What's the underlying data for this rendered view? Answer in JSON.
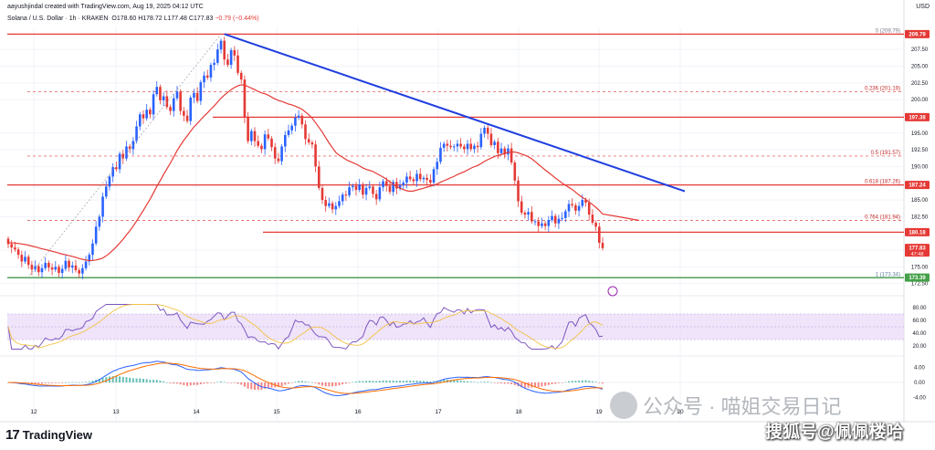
{
  "header": {
    "author_line": "aayushjindal created with TradingView.com, Aug 19, 2025 04:12 UTC",
    "symbol": "Solana / U.S. Dollar · 1h · KRAKEN",
    "open": "O178.60",
    "high": "H178.72",
    "low": "L177.48",
    "close": "C177.83",
    "change": "−0.79 (−0.44%)",
    "currency": "USD"
  },
  "brand": {
    "logo_mark": "17",
    "name": "TradingView"
  },
  "watermark": {
    "line1": "公众号 · 喵姐交易日记",
    "line2": "搜狐号@佩佩楼哈"
  },
  "colors": {
    "up": "#2962ff",
    "down": "#e53935",
    "ma": "#e53935",
    "trendline": "#1f3fe0",
    "fib": "#e57373",
    "support": "#43a047",
    "rsi_band": "#e8d9f7",
    "rsi_line": "#7e57c2",
    "rsi_signal": "#f3c244",
    "macd": "#2962ff",
    "macd_signal": "#ff6d00"
  },
  "chart_data": {
    "type": "candlestick",
    "symbol": "SOL/USD",
    "timeframe": "1h",
    "x_tick_labels": [
      "12",
      "13",
      "14",
      "15",
      "16",
      "17",
      "18",
      "19",
      "20"
    ],
    "y_axis": {
      "ticks": [
        172.5,
        175.0,
        177.5,
        182.5,
        185.0,
        190.0,
        192.5,
        195.0,
        200.0,
        202.5,
        205.0,
        207.5
      ],
      "ylim": [
        171.5,
        210.8
      ]
    },
    "candles_close": [
      178.4,
      177.9,
      177.6,
      176.8,
      175.8,
      176.5,
      175.3,
      174.6,
      175.1,
      174.2,
      174.8,
      175.6,
      174.9,
      174.6,
      175.0,
      174.1,
      174.7,
      175.9,
      174.9,
      175.2,
      174.5,
      174.0,
      174.8,
      175.8,
      176.8,
      178.5,
      181.0,
      182.5,
      185.5,
      187.0,
      188.5,
      189.9,
      189.6,
      191.9,
      191.2,
      193.0,
      192.6,
      193.8,
      196.0,
      197.8,
      197.2,
      198.5,
      197.8,
      200.8,
      201.9,
      199.9,
      200.5,
      198.9,
      198.3,
      200.2,
      201.2,
      198.3,
      197.6,
      196.8,
      200.3,
      201.0,
      199.8,
      202.6,
      203.6,
      203.3,
      205.2,
      205.5,
      207.5,
      208.8,
      206.0,
      205.2,
      207.4,
      206.6,
      204.0,
      203.0,
      197.3,
      193.8,
      195.3,
      193.8,
      193.1,
      192.6,
      194.8,
      194.2,
      192.9,
      191.2,
      190.8,
      193.0,
      194.7,
      195.4,
      196.1,
      197.3,
      197.6,
      196.3,
      194.1,
      193.6,
      193.3,
      190.0,
      186.8,
      185.0,
      184.1,
      184.5,
      183.6,
      184.1,
      184.8,
      185.8,
      185.7,
      186.9,
      187.1,
      186.5,
      187.3,
      185.8,
      186.8,
      187.0,
      185.9,
      185.1,
      186.9,
      187.8,
      187.1,
      186.2,
      187.7,
      186.7,
      187.2,
      187.6,
      188.5,
      188.1,
      187.8,
      188.9,
      188.1,
      188.3,
      188.0,
      187.6,
      189.6,
      190.7,
      192.8,
      193.4,
      193.1,
      192.9,
      193.0,
      193.4,
      193.0,
      192.6,
      193.4,
      192.6,
      193.1,
      192.9,
      194.9,
      195.8,
      194.9,
      193.2,
      193.7,
      192.0,
      192.7,
      191.8,
      192.7,
      190.6,
      187.9,
      184.8,
      183.1,
      182.8,
      183.2,
      181.8,
      181.8,
      181.1,
      181.5,
      181.1,
      182.0,
      182.6,
      181.5,
      182.2,
      182.3,
      183.3,
      184.4,
      184.2,
      183.4,
      184.1,
      185.0,
      184.6,
      182.8,
      181.6,
      181.0,
      178.6,
      177.8
    ],
    "indicators": {
      "moving_average": "red line",
      "trendline": "descending blue line"
    },
    "horizontal_levels": [
      197.38,
      187.24,
      180.18,
      173.39
    ],
    "fibonacci": [
      {
        "label": "0 (209.79)",
        "value": 209.79
      },
      {
        "label": "0.236 (201.19)",
        "value": 201.19
      },
      {
        "label": "0.5 (191.57)",
        "value": 191.57
      },
      {
        "label": "0.618 (187.26)",
        "value": 187.26
      },
      {
        "label": "0.764 (181.94)",
        "value": 181.94
      },
      {
        "label": "1 (173.34)",
        "value": 173.34
      }
    ],
    "price_tags": [
      {
        "label": "209.79",
        "value": 209.79,
        "color": "#e53935"
      },
      {
        "label": "197.38",
        "value": 197.38,
        "color": "#e53935"
      },
      {
        "label": "187.24",
        "value": 187.24,
        "color": "#e53935"
      },
      {
        "label": "180.18",
        "value": 180.18,
        "color": "#e53935"
      },
      {
        "label": "177.83",
        "value": 177.83,
        "color": "#e53935",
        "sub": "47:48"
      },
      {
        "label": "173.39",
        "value": 173.39,
        "color": "#43a047"
      }
    ],
    "rsi": {
      "ticks": [
        80.0,
        60.0,
        40.0,
        20.0
      ],
      "band": [
        30,
        70
      ],
      "range": [
        10,
        90
      ]
    },
    "macd": {
      "ticks": [
        4.0,
        0.0,
        -4.0
      ],
      "range": [
        -6,
        6
      ]
    }
  }
}
